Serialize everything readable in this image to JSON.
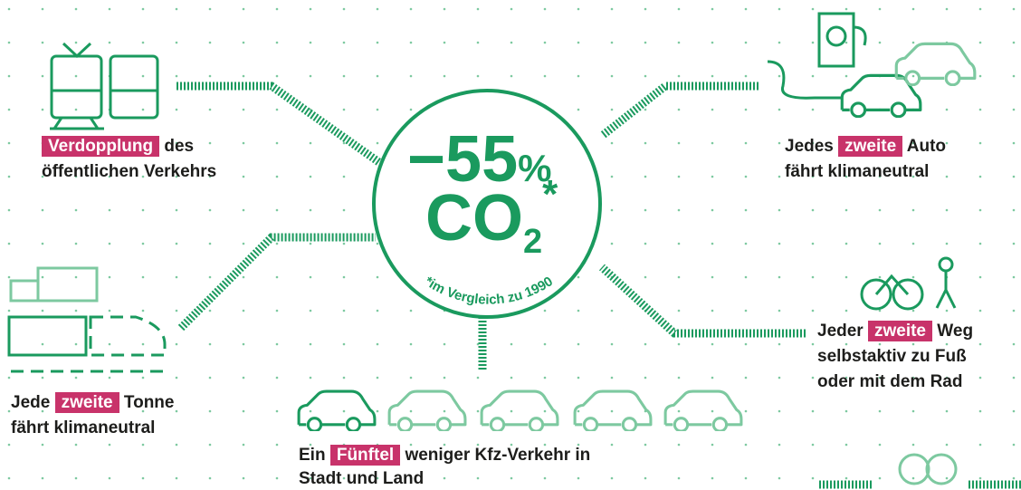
{
  "center": {
    "percent_value": "−55",
    "percent_sign": "%",
    "gas": "CO",
    "subscript": "2",
    "asterisk": "*",
    "footnote": "*im Vergleich zu 1990"
  },
  "goals": [
    {
      "highlight": "Verdopplung",
      "after": " des",
      "line2": "öffentlichen Verkehrs"
    },
    {
      "before": "Jedes ",
      "highlight": "zweite",
      "after": " Auto",
      "line2": "fährt klimaneutral"
    },
    {
      "before": "Jeder ",
      "highlight": "zweite",
      "after": " Weg",
      "line2": "selbstaktiv zu Fuß",
      "line3": "oder mit dem Rad"
    },
    {
      "before": "Jede ",
      "highlight": "zweite",
      "after": " Tonne",
      "line2": "fährt klimaneutral"
    },
    {
      "before": "Ein ",
      "highlight": "Fünftel",
      "after": " weniger Kfz-Verkehr in",
      "line2": "Stadt und Land"
    }
  ]
}
